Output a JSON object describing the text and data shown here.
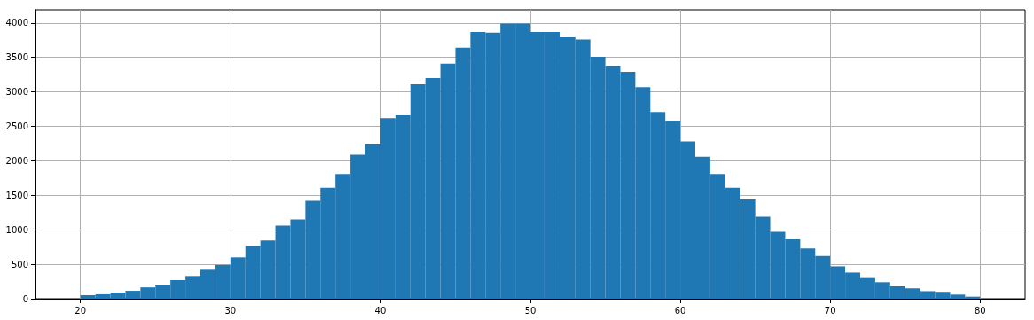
{
  "chart_data": {
    "type": "histogram",
    "color": "#1f77b4",
    "bins": [
      20,
      21,
      22,
      23,
      24,
      25,
      26,
      27,
      28,
      29,
      30,
      31,
      32,
      33,
      34,
      35,
      36,
      37,
      38,
      39,
      40,
      41,
      42,
      43,
      44,
      45,
      46,
      47,
      48,
      49,
      50,
      51,
      52,
      53,
      54,
      55,
      56,
      57,
      58,
      59,
      60,
      61,
      62,
      63,
      64,
      65,
      66,
      67,
      68,
      69,
      70,
      71,
      72,
      73,
      74,
      75,
      76,
      77,
      78,
      79,
      80
    ],
    "values": [
      50,
      65,
      90,
      115,
      165,
      205,
      270,
      330,
      420,
      490,
      600,
      765,
      845,
      1060,
      1150,
      1420,
      1610,
      1810,
      2090,
      2240,
      2620,
      2660,
      3110,
      3200,
      3410,
      3640,
      3870,
      3860,
      3990,
      3990,
      3870,
      3870,
      3790,
      3760,
      3510,
      3370,
      3290,
      3070,
      2710,
      2580,
      2280,
      2060,
      1810,
      1610,
      1440,
      1190,
      970,
      860,
      730,
      620,
      470,
      380,
      300,
      240,
      180,
      150,
      110,
      100,
      60,
      30
    ],
    "xlim": [
      17,
      83
    ],
    "xticks": [
      20,
      30,
      40,
      50,
      60,
      70,
      80
    ],
    "ylim": [
      0,
      4190
    ],
    "yticks": [
      0,
      500,
      1000,
      1500,
      2000,
      2500,
      3000,
      3500,
      4000
    ],
    "grid": true
  }
}
